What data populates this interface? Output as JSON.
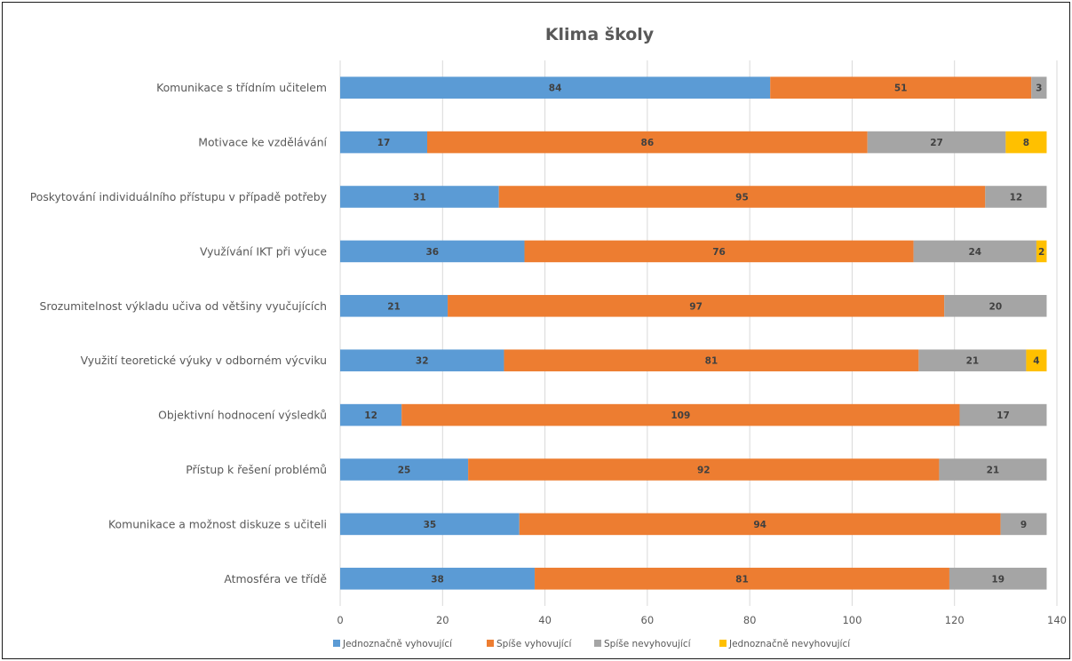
{
  "chart_data": {
    "type": "bar",
    "orientation": "horizontal",
    "stacked": true,
    "title": "Klima školy",
    "categories": [
      "Komunikace s třídním učitelem",
      "Motivace ke vzdělávání",
      "Poskytování individuálního přístupu v případě potřeby",
      "Využívání IKT při výuce",
      "Srozumitelnost výkladu učiva od většiny vyučujících",
      "Využití teoretické výuky v odborném výcviku",
      "Objektivní hodnocení výsledků",
      "Přístup k řešení problémů",
      "Komunikace a možnost diskuze s učiteli",
      "Atmosféra ve třídě"
    ],
    "series": [
      {
        "name": "Jednoznačně vyhovující",
        "color": "#5b9bd5",
        "values": [
          84,
          17,
          31,
          36,
          21,
          32,
          12,
          25,
          35,
          38
        ]
      },
      {
        "name": "Spíše vyhovující",
        "color": "#ed7d31",
        "values": [
          51,
          86,
          95,
          76,
          97,
          81,
          109,
          92,
          94,
          81
        ]
      },
      {
        "name": "Spíše nevyhovující",
        "color": "#a5a5a5",
        "values": [
          3,
          27,
          12,
          24,
          20,
          21,
          17,
          21,
          9,
          19
        ]
      },
      {
        "name": "Jednoznačně nevyhovující",
        "color": "#ffc000",
        "values": [
          null,
          8,
          null,
          2,
          null,
          4,
          null,
          null,
          null,
          null
        ]
      }
    ],
    "xlim": [
      0,
      140
    ],
    "xticks": [
      "0",
      "20",
      "40",
      "60",
      "80",
      "100",
      "120",
      "140"
    ],
    "grid": true,
    "legend_position": "bottom"
  }
}
